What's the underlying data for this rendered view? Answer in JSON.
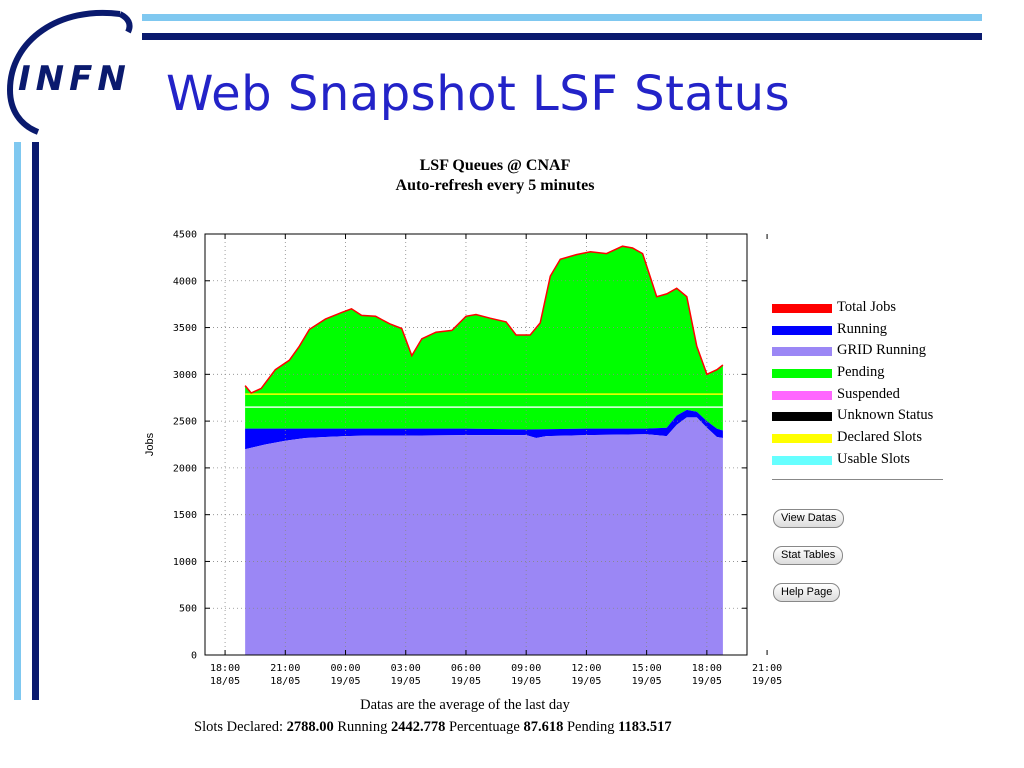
{
  "slide": {
    "title": "Web Snapshot LSF Status",
    "logo_text": "INFN",
    "colors": {
      "title": "#2323c8",
      "bar_dark": "#0a1a6e",
      "bar_light": "#7fc8f0"
    }
  },
  "chart_title": {
    "line1": "LSF Queues @ CNAF",
    "line2": "Auto-refresh every 5 minutes"
  },
  "chart_data": {
    "type": "area",
    "title": "LSF Queues @ CNAF",
    "subtitle": "Auto-refresh every 5 minutes",
    "ylabel": "Jobs",
    "xlabel": "",
    "ylim": [
      0,
      4500
    ],
    "yticks": [
      0,
      500,
      1000,
      1500,
      2000,
      2500,
      3000,
      3500,
      4000,
      4500
    ],
    "xlim": [
      -1,
      26
    ],
    "x_unit": "hours after 18/05 18:00",
    "xticks": [
      {
        "x": 0,
        "line1": "18:00",
        "line2": "18/05"
      },
      {
        "x": 3,
        "line1": "21:00",
        "line2": "18/05"
      },
      {
        "x": 6,
        "line1": "00:00",
        "line2": "19/05"
      },
      {
        "x": 9,
        "line1": "03:00",
        "line2": "19/05"
      },
      {
        "x": 12,
        "line1": "06:00",
        "line2": "19/05"
      },
      {
        "x": 15,
        "line1": "09:00",
        "line2": "19/05"
      },
      {
        "x": 18,
        "line1": "12:00",
        "line2": "19/05"
      },
      {
        "x": 21,
        "line1": "15:00",
        "line2": "19/05"
      },
      {
        "x": 24,
        "line1": "18:00",
        "line2": "19/05"
      },
      {
        "x": 27,
        "line1": "21:00",
        "line2": "19/05"
      }
    ],
    "grid": true,
    "legend_position": "right",
    "series": [
      {
        "name": "Total Jobs",
        "color": "#ff0000",
        "points": [
          [
            1,
            2880
          ],
          [
            1.3,
            2800
          ],
          [
            1.8,
            2850
          ],
          [
            2.5,
            3050
          ],
          [
            3.2,
            3150
          ],
          [
            3.7,
            3300
          ],
          [
            4.2,
            3480
          ],
          [
            5,
            3590
          ],
          [
            5.8,
            3660
          ],
          [
            6.3,
            3700
          ],
          [
            6.8,
            3630
          ],
          [
            7.5,
            3620
          ],
          [
            8.2,
            3540
          ],
          [
            8.8,
            3490
          ],
          [
            9.3,
            3200
          ],
          [
            9.8,
            3380
          ],
          [
            10.5,
            3450
          ],
          [
            11.3,
            3470
          ],
          [
            12,
            3620
          ],
          [
            12.5,
            3640
          ],
          [
            13.2,
            3600
          ],
          [
            14,
            3560
          ],
          [
            14.5,
            3420
          ],
          [
            15.2,
            3420
          ],
          [
            15.7,
            3550
          ],
          [
            16.2,
            4050
          ],
          [
            16.7,
            4230
          ],
          [
            17.5,
            4280
          ],
          [
            18.2,
            4310
          ],
          [
            19,
            4290
          ],
          [
            19.8,
            4370
          ],
          [
            20.3,
            4350
          ],
          [
            20.8,
            4290
          ],
          [
            21.2,
            4030
          ],
          [
            21.5,
            3830
          ],
          [
            22,
            3860
          ],
          [
            22.5,
            3920
          ],
          [
            23,
            3830
          ],
          [
            23.5,
            3300
          ],
          [
            24,
            3000
          ],
          [
            24.5,
            3050
          ],
          [
            24.8,
            3100
          ]
        ]
      },
      {
        "name": "Running",
        "color": "#0000ff",
        "points": [
          [
            1,
            2420
          ],
          [
            3,
            2420
          ],
          [
            6,
            2420
          ],
          [
            9,
            2420
          ],
          [
            12,
            2420
          ],
          [
            15,
            2410
          ],
          [
            18,
            2420
          ],
          [
            21,
            2420
          ],
          [
            22,
            2430
          ],
          [
            22.5,
            2560
          ],
          [
            23,
            2620
          ],
          [
            23.5,
            2600
          ],
          [
            24,
            2500
          ],
          [
            24.5,
            2420
          ],
          [
            24.8,
            2400
          ]
        ]
      },
      {
        "name": "GRID Running",
        "color": "#9b87f5",
        "points": [
          [
            1,
            2200
          ],
          [
            2,
            2250
          ],
          [
            3,
            2290
          ],
          [
            4,
            2320
          ],
          [
            5,
            2330
          ],
          [
            6,
            2340
          ],
          [
            7,
            2345
          ],
          [
            9,
            2345
          ],
          [
            12,
            2350
          ],
          [
            15,
            2350
          ],
          [
            15.5,
            2320
          ],
          [
            16,
            2340
          ],
          [
            18,
            2350
          ],
          [
            21,
            2360
          ],
          [
            22,
            2340
          ],
          [
            22.5,
            2460
          ],
          [
            23,
            2540
          ],
          [
            23.5,
            2540
          ],
          [
            24,
            2430
          ],
          [
            24.5,
            2330
          ],
          [
            24.8,
            2320
          ]
        ]
      },
      {
        "name": "Pending",
        "color": "#00ff00"
      },
      {
        "name": "Suspended",
        "color": "#ff66ff"
      },
      {
        "name": "Unknown Status",
        "color": "#000000"
      },
      {
        "name": "Declared Slots",
        "color": "#ffff00",
        "value": 2788
      },
      {
        "name": "Usable Slots",
        "color": "#66ffff",
        "value": 2650
      }
    ]
  },
  "buttons": {
    "view_datas": "View Datas",
    "stat_tables": "Stat Tables",
    "help_page": "Help Page"
  },
  "footer": {
    "line1": "Datas are the average of the last day",
    "slots_label": "Slots Declared:",
    "slots_value": "2788.00",
    "running_label": "Running",
    "running_value": "2442.778",
    "percentage_label": "Percentuage",
    "percentage_value": "87.618",
    "pending_label": "Pending",
    "pending_value": "1183.517"
  }
}
